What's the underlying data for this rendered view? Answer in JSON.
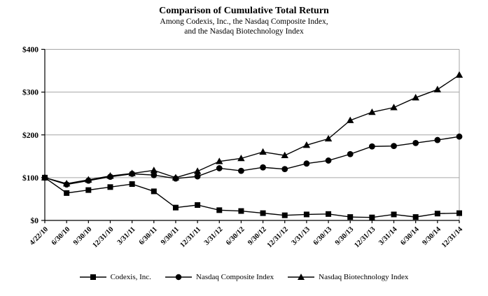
{
  "chart_data": {
    "type": "line",
    "title": "Comparison of Cumulative Total Return",
    "subtitle1": "Among Codexis, Inc., the Nasdaq Composite Index,",
    "subtitle2": "and the Nasdaq Biotechnology Index",
    "categories": [
      "4/22/10",
      "6/30/10",
      "9/30/10",
      "12/31/10",
      "3/31/11",
      "6/30/11",
      "9/30/11",
      "12/31/11",
      "3/31/12",
      "6/30/12",
      "9/30/12",
      "12/31/12",
      "3/31/13",
      "6/30/13",
      "9/30/13",
      "12/31/13",
      "3/31/14",
      "6/30/14",
      "9/30/14",
      "12/31/14"
    ],
    "series": [
      {
        "name": "Codexis, Inc.",
        "marker": "square",
        "color": "#000000",
        "values": [
          100,
          64,
          71,
          78,
          85,
          68,
          30,
          36,
          24,
          22,
          17,
          12,
          14,
          15,
          8,
          7,
          14,
          8,
          16,
          17
        ]
      },
      {
        "name": "Nasdaq Composite Index",
        "marker": "circle",
        "color": "#000000",
        "values": [
          100,
          84,
          93,
          102,
          109,
          106,
          98,
          103,
          122,
          116,
          124,
          120,
          133,
          140,
          155,
          173,
          174,
          181,
          188,
          196
        ]
      },
      {
        "name": "Nasdaq Biotechnology Index",
        "marker": "triangle",
        "color": "#000000",
        "values": [
          100,
          86,
          95,
          104,
          110,
          117,
          100,
          115,
          138,
          145,
          160,
          152,
          176,
          191,
          234,
          253,
          264,
          287,
          306,
          340
        ]
      }
    ],
    "y_axis": {
      "min": 0,
      "max": 400,
      "ticks": [
        {
          "label": "$400",
          "value": 400
        },
        {
          "label": "$300",
          "value": 300
        },
        {
          "label": "$200",
          "value": 200
        },
        {
          "label": "$100",
          "value": 100
        },
        {
          "label": "$0",
          "value": 0
        }
      ]
    },
    "grid_on": true,
    "legend_position": "bottom",
    "colors": {
      "line": "#000000",
      "grid": "#a6a6a6",
      "axis": "#000000",
      "text": "#000000"
    }
  }
}
